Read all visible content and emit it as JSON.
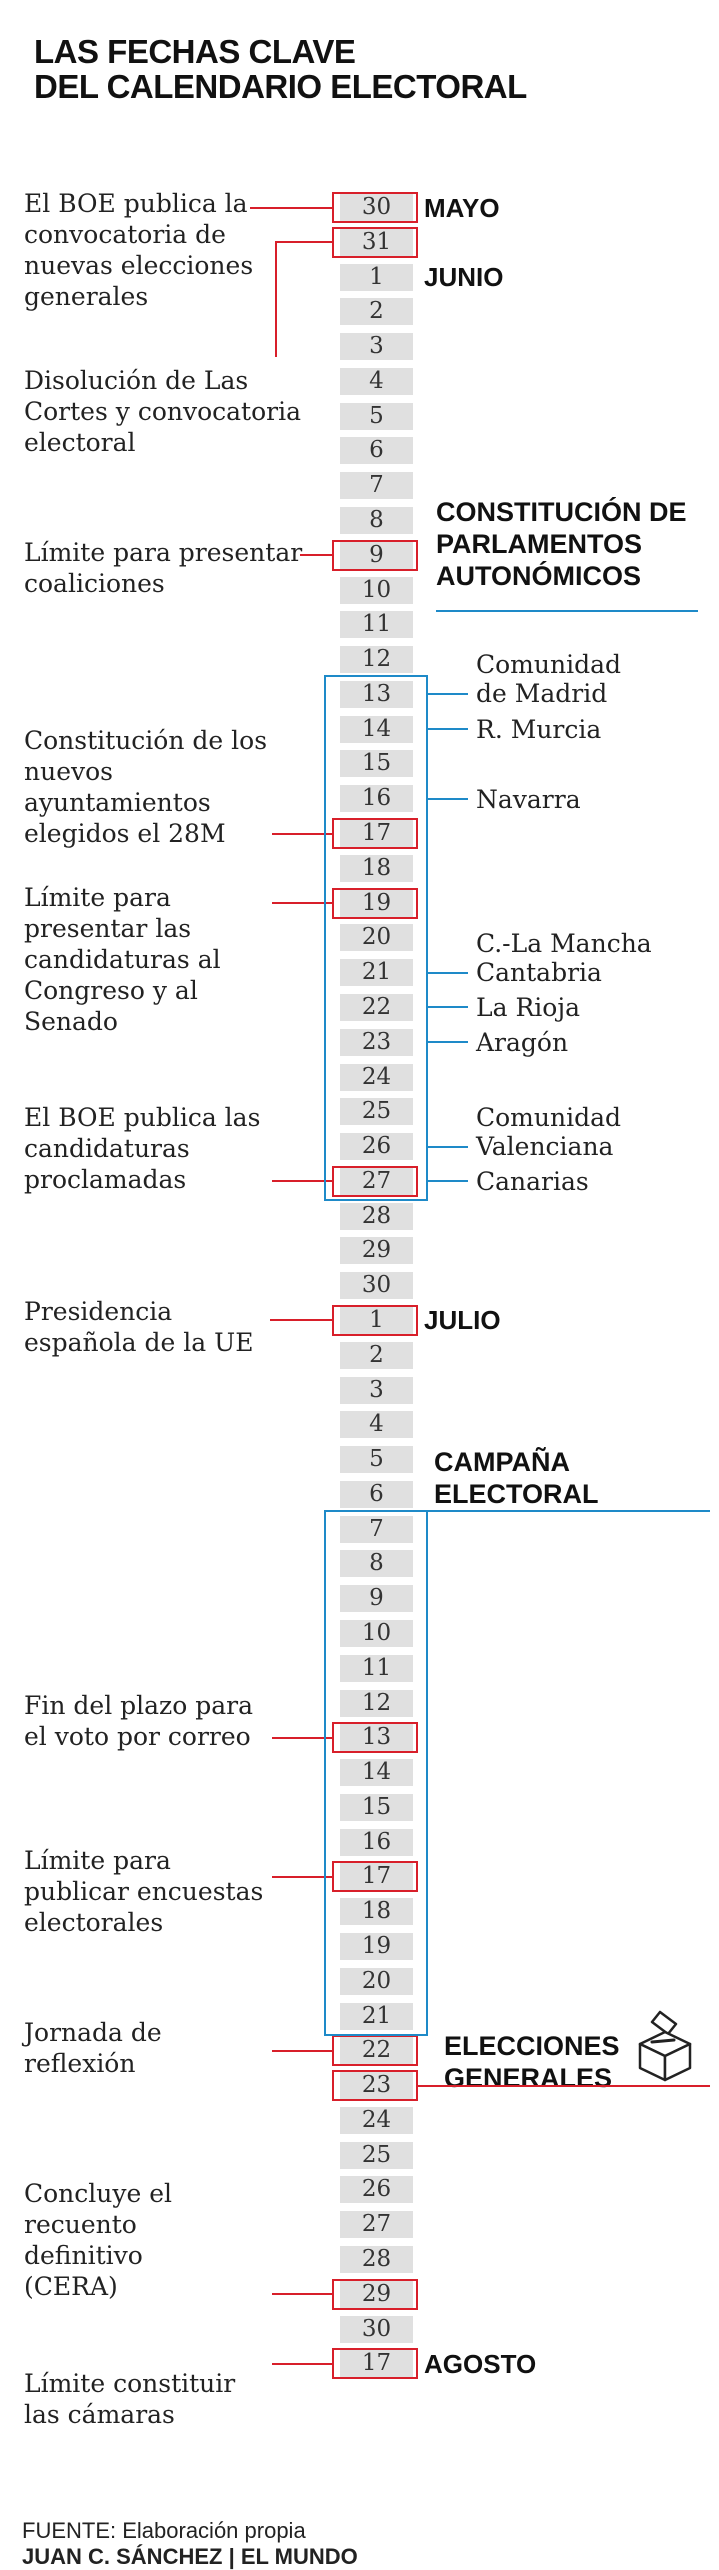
{
  "title": {
    "line1": "LAS FECHAS CLAVE",
    "line2": "DEL CALENDARIO ELECTORAL"
  },
  "days": [
    {
      "label": "30",
      "highlight": true
    },
    {
      "label": "31",
      "highlight": true
    },
    {
      "label": "1",
      "highlight": false
    },
    {
      "label": "2",
      "highlight": false
    },
    {
      "label": "3",
      "highlight": false
    },
    {
      "label": "4",
      "highlight": false
    },
    {
      "label": "5",
      "highlight": false
    },
    {
      "label": "6",
      "highlight": false
    },
    {
      "label": "7",
      "highlight": false
    },
    {
      "label": "8",
      "highlight": false
    },
    {
      "label": "9",
      "highlight": true
    },
    {
      "label": "10",
      "highlight": false
    },
    {
      "label": "11",
      "highlight": false
    },
    {
      "label": "12",
      "highlight": false
    },
    {
      "label": "13",
      "highlight": false
    },
    {
      "label": "14",
      "highlight": false
    },
    {
      "label": "15",
      "highlight": false
    },
    {
      "label": "16",
      "highlight": false
    },
    {
      "label": "17",
      "highlight": true
    },
    {
      "label": "18",
      "highlight": false
    },
    {
      "label": "19",
      "highlight": true
    },
    {
      "label": "20",
      "highlight": false
    },
    {
      "label": "21",
      "highlight": false
    },
    {
      "label": "22",
      "highlight": false
    },
    {
      "label": "23",
      "highlight": false
    },
    {
      "label": "24",
      "highlight": false
    },
    {
      "label": "25",
      "highlight": false
    },
    {
      "label": "26",
      "highlight": false
    },
    {
      "label": "27",
      "highlight": true
    },
    {
      "label": "28",
      "highlight": false
    },
    {
      "label": "29",
      "highlight": false
    },
    {
      "label": "30",
      "highlight": false
    },
    {
      "label": "1",
      "highlight": true
    },
    {
      "label": "2",
      "highlight": false
    },
    {
      "label": "3",
      "highlight": false
    },
    {
      "label": "4",
      "highlight": false
    },
    {
      "label": "5",
      "highlight": false
    },
    {
      "label": "6",
      "highlight": false
    },
    {
      "label": "7",
      "highlight": false
    },
    {
      "label": "8",
      "highlight": false
    },
    {
      "label": "9",
      "highlight": false
    },
    {
      "label": "10",
      "highlight": false
    },
    {
      "label": "11",
      "highlight": false
    },
    {
      "label": "12",
      "highlight": false
    },
    {
      "label": "13",
      "highlight": true
    },
    {
      "label": "14",
      "highlight": false
    },
    {
      "label": "15",
      "highlight": false
    },
    {
      "label": "16",
      "highlight": false
    },
    {
      "label": "17",
      "highlight": true
    },
    {
      "label": "18",
      "highlight": false
    },
    {
      "label": "19",
      "highlight": false
    },
    {
      "label": "20",
      "highlight": false
    },
    {
      "label": "21",
      "highlight": false
    },
    {
      "label": "22",
      "highlight": true
    },
    {
      "label": "23",
      "highlight": true
    },
    {
      "label": "24",
      "highlight": false
    },
    {
      "label": "25",
      "highlight": false
    },
    {
      "label": "26",
      "highlight": false
    },
    {
      "label": "27",
      "highlight": false
    },
    {
      "label": "28",
      "highlight": false
    },
    {
      "label": "29",
      "highlight": true
    },
    {
      "label": "30",
      "highlight": false
    },
    {
      "label": "17",
      "highlight": true
    }
  ],
  "months": [
    {
      "label": "MAYO",
      "day_index": 0
    },
    {
      "label": "JUNIO",
      "day_index": 2
    },
    {
      "label": "JULIO",
      "day_index": 32
    },
    {
      "label": "AGOSTO",
      "day_index": 62
    }
  ],
  "events": [
    {
      "text": "El BOE publica la\nconvocatoria de\nnuevas elecciones\ngenerales",
      "day_index": 0
    },
    {
      "text": "Disolución de Las\nCortes y convocatoria\nelectoral",
      "day_index": 1
    },
    {
      "text": "Límite para presentar\ncoaliciones",
      "day_index": 10
    },
    {
      "text": "Constitución de los\nnuevos\nayuntamientos\nelegidos el 28M",
      "day_index": 18
    },
    {
      "text": "Límite para\npresentar las\ncandidaturas al\nCongreso y al\nSenado",
      "day_index": 20
    },
    {
      "text": "El BOE publica las\ncandidaturas\nproclamadas",
      "day_index": 28
    },
    {
      "text": "Presidencia\nespañola de la UE",
      "day_index": 32
    },
    {
      "text": "Fin del plazo para\nel voto por correo",
      "day_index": 44
    },
    {
      "text": "Límite para\npublicar encuestas\nelectorales",
      "day_index": 48
    },
    {
      "text": "Jornada de\nreflexión",
      "day_index": 53
    },
    {
      "text": "Concluye el\nrecuento\ndefinitivo\n(CERA)",
      "day_index": 60
    },
    {
      "text": "Límite constituir\nlas cámaras",
      "day_index": 62
    }
  ],
  "sections": {
    "parliaments": {
      "label": "CONSTITUCIÓN DE\nPARLAMENTOS\nAUTONÓMICOS",
      "start_index": 14,
      "end_index": 28
    },
    "campaign": {
      "label": "CAMPAÑA\nELECTORAL",
      "start_index": 38,
      "end_index": 52
    },
    "elections": {
      "label": "ELECCIONES\nGENERALES",
      "day_index": 54,
      "icon": "ballot-box-icon"
    }
  },
  "regions": [
    {
      "label": "Comunidad\nde Madrid",
      "day_index": 14
    },
    {
      "label": "R. Murcia",
      "day_index": 15
    },
    {
      "label": "Navarra",
      "day_index": 17
    },
    {
      "label": "C.-La Mancha\nCantabria",
      "day_index": 22
    },
    {
      "label": "La Rioja",
      "day_index": 23
    },
    {
      "label": "Aragón",
      "day_index": 24
    },
    {
      "label": "Comunidad\nValenciana",
      "day_index": 27
    },
    {
      "label": "Canarias",
      "day_index": 28
    }
  ],
  "footer": {
    "source": "FUENTE: Elaboración propia",
    "author": "JUAN C. SÁNCHEZ | EL MUNDO"
  },
  "colors": {
    "red": "#d81f2a",
    "blue": "#1e8ac8",
    "day_bg": "#e0e0e0"
  }
}
